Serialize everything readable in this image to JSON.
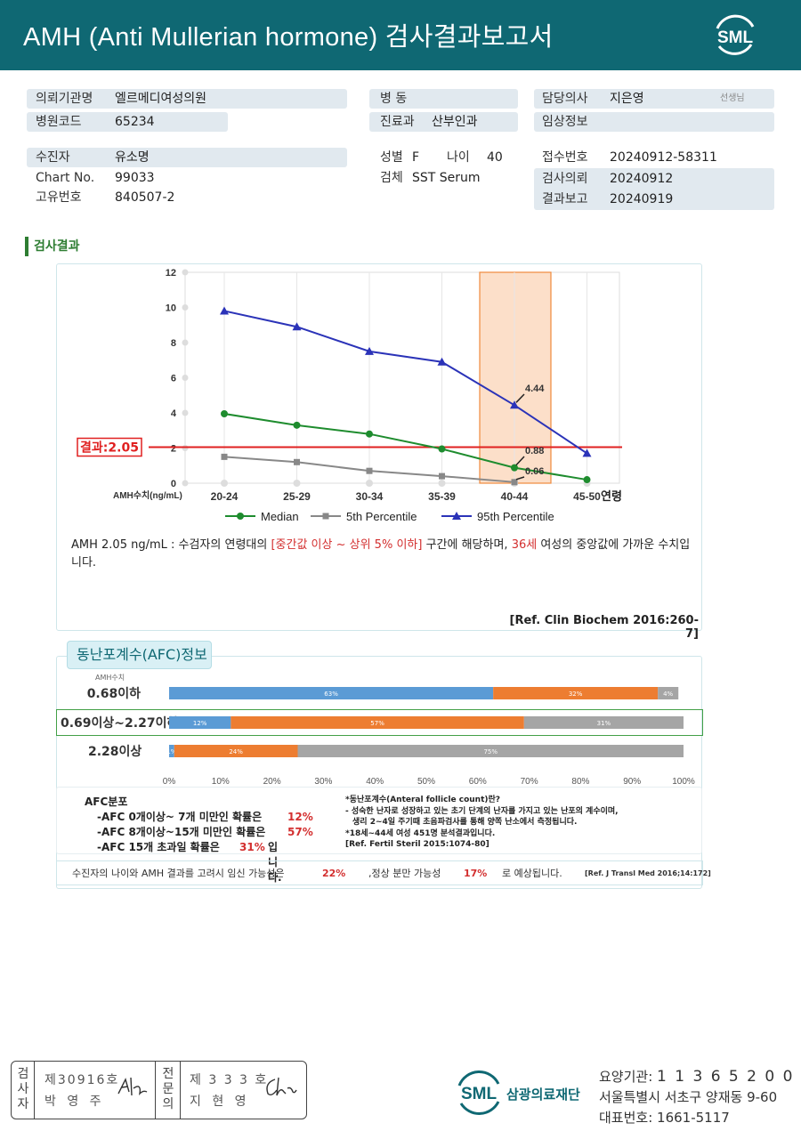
{
  "header": {
    "title": "AMH (Anti Mullerian hormone) 검사결과보고서",
    "logo_text": "SML"
  },
  "patient_info": {
    "institution_label": "의뢰기관명",
    "institution_value": "엘르메디여성의원",
    "hospital_code_label": "병원코드",
    "hospital_code_value": "65234",
    "ward_label": "병  동",
    "ward_value": "",
    "department_label": "진료과",
    "department_value": "산부인과",
    "doctor_label": "담당의사",
    "doctor_value": "지은영",
    "doctor_suffix": "선생님",
    "clinical_label": "임상정보",
    "clinical_value": "",
    "patient_label": "수진자",
    "patient_value": "유소명",
    "chart_label": "Chart No.",
    "chart_value": "99033",
    "id_label": "고유번호",
    "id_value": "840507-2",
    "sex_label": "성별",
    "sex_value": "F",
    "age_label": "나이",
    "age_value": "40",
    "specimen_label": "검체",
    "specimen_value": "SST Serum",
    "receipt_label": "접수번호",
    "receipt_value": "20240912-58311",
    "request_label": "검사의뢰",
    "request_value": "20240912",
    "report_label": "결과보고",
    "report_value": "20240919"
  },
  "section_title": "검사결과",
  "chart_data": {
    "type": "line",
    "categories": [
      "20-24",
      "25-29",
      "30-34",
      "35-39",
      "40-44",
      "45-50"
    ],
    "series": [
      {
        "name": "Median",
        "values": [
          3.95,
          3.3,
          2.8,
          1.95,
          0.88,
          0.2
        ],
        "color": "#1e8c2e"
      },
      {
        "name": "5th Percentile",
        "values": [
          1.5,
          1.2,
          0.7,
          0.4,
          0.06,
          null
        ],
        "color": "#888888"
      },
      {
        "name": "95th Percentile",
        "values": [
          9.8,
          8.9,
          7.5,
          6.9,
          4.44,
          1.7
        ],
        "color": "#2b33b8"
      }
    ],
    "ylim": [
      0,
      12
    ],
    "yticks": [
      "0",
      "2",
      "4",
      "6",
      "8",
      "10",
      "12"
    ],
    "ylabel": "AMH수치(ng/mL)",
    "xlabel": "연령",
    "result_line": {
      "value": 2.05,
      "label": "결과:2.05"
    },
    "highlight_category": "40-44",
    "annotations": [
      "4.44",
      "0.88",
      "0.06"
    ],
    "legend_position": "bottom",
    "grid": "vertical"
  },
  "result_text": {
    "part1": "AMH  2.05 ng/mL : 수검자의 연령대의 ",
    "part2": "[중간값 이상 ~ 상위 5% 이하]",
    "part3": " 구간에 해당하며, ",
    "part4": "36세",
    "part5": " 여성의 중앙값에 가까운 수치입니다.",
    "ref": "[Ref. Clin Biochem 2016:260-7]"
  },
  "afc": {
    "tab_label": "동난포계수(AFC)정보",
    "amh_axis_label": "AMH수치",
    "axis_ticks": [
      "0%",
      "10%",
      "20%",
      "30%",
      "40%",
      "50%",
      "60%",
      "70%",
      "80%",
      "90%",
      "100%"
    ],
    "bars": [
      {
        "label": "0.68이하",
        "segments": [
          63,
          32,
          4
        ],
        "seg_labels": [
          "63%",
          "32%",
          "4%"
        ]
      },
      {
        "label": "0.69이상~2.27이하",
        "segments": [
          12,
          57,
          31
        ],
        "seg_labels": [
          "12%",
          "57%",
          "31%"
        ]
      },
      {
        "label": "2.28이상",
        "segments": [
          1,
          24,
          75
        ],
        "seg_labels": [
          "1%",
          "24%",
          "75%"
        ]
      }
    ],
    "colors": [
      "#5b9bd5",
      "#ed7d31",
      "#a5a5a5"
    ],
    "dist_title": "AFC분포",
    "dist_lines": [
      {
        "text": "-AFC  0개이상~ 7개 미만인 확률은",
        "pct": "12%"
      },
      {
        "text": "-AFC  8개이상~15개 미만인 확률은",
        "pct": "57%"
      },
      {
        "text": "-AFC  15개 초과일 확률은",
        "pct": "31%",
        "tail": "입니다."
      }
    ],
    "note_lines": [
      "*동난포계수(Anteral follicle count)란?",
      "- 성숙한 난자로 성장하고 있는 초기 단계의 난자를 가지고 있는 난포의 계수이며,",
      "  생리 2~4일 주기때 초음파검사를 통해 양쪽 난소에서 측정됩니다.",
      "*18세~44세 여성 451명 분석결과입니다.",
      "[Ref. Fertil Steril 2015:1074-80]"
    ],
    "preg_text1": "수진자의  나이와 AMH 결과를 고려시 임신 가능성은",
    "preg_pct1": "22%",
    "preg_text2": ",정상 분만 가능성",
    "preg_pct2": "17%",
    "preg_text3": "로 예상됩니다.",
    "preg_ref": "[Ref. J Transl Med 2016;14:172]"
  },
  "signature": {
    "left_vlabel": [
      "검",
      "사",
      "자"
    ],
    "left_no": "제30916호",
    "left_name": "박 영 주",
    "right_vlabel": [
      "전",
      "문",
      "의"
    ],
    "right_no": "제 3 3 3 호",
    "right_name": "지 현 영"
  },
  "footer": {
    "logo_text": "SML",
    "org_name": "삼광의료재단",
    "code_label": "요양기관:",
    "code_value": "1 1 3 6 5 2 0 0",
    "address": "서울특별시 서초구 양재동 9-60",
    "phone_label": "대표번호:",
    "phone_value": "1661-5117"
  }
}
